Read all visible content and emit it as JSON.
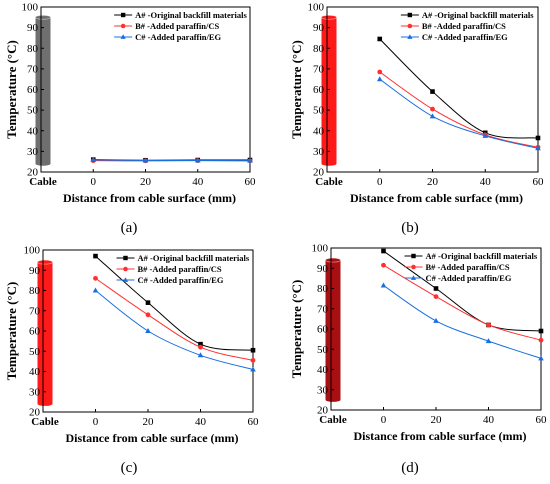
{
  "colors": {
    "series_A": "#000000",
    "series_B": "#ff3030",
    "series_C": "#1a6fe0",
    "cylinder_gray": "#6f6f6f",
    "cylinder_red": "#ff1a1a",
    "cylinder_darkred": "#a80f12"
  },
  "chart_data": [
    {
      "type": "line",
      "panel_label": "(a)",
      "cylinder_color": "cylinder_gray",
      "ylabel": "Temperature (°C)",
      "xlabel": "Distance from cable surface (mm)",
      "ylim": [
        20,
        100
      ],
      "yticks": [
        "20",
        "30",
        "40",
        "50",
        "60",
        "70",
        "80",
        "90",
        "100"
      ],
      "xlim": [
        -20,
        60
      ],
      "xticks": [
        {
          "value": -20,
          "label": "Cable"
        },
        {
          "value": 0,
          "label": "0"
        },
        {
          "value": 20,
          "label": "20"
        },
        {
          "value": 40,
          "label": "40"
        },
        {
          "value": 60,
          "label": "60"
        }
      ],
      "cylinder": {
        "label": "Cable",
        "top": 95,
        "bottom": 24
      },
      "legend_position": "top-right",
      "x": [
        0,
        20,
        40,
        60
      ],
      "series": [
        {
          "name": "A# -Original backfill materials",
          "color": "series_A",
          "marker": "square",
          "values": [
            26,
            25.7,
            25.8,
            25.8
          ]
        },
        {
          "name": "B# -Added paraffin/CS",
          "color": "series_B",
          "marker": "circle",
          "values": [
            25.5,
            25.4,
            25.5,
            25.4
          ]
        },
        {
          "name": "C# -Added paraffin/EG",
          "color": "series_C",
          "marker": "triangle",
          "values": [
            25.8,
            25.6,
            25.6,
            25.5
          ]
        }
      ]
    },
    {
      "type": "line",
      "panel_label": "(b)",
      "cylinder_color": "cylinder_red",
      "ylabel": "Temperature (°C)",
      "xlabel": "Distance from cable surface (mm)",
      "ylim": [
        20,
        100
      ],
      "yticks": [
        "20",
        "30",
        "40",
        "50",
        "60",
        "70",
        "80",
        "90",
        "100"
      ],
      "xlim": [
        -20,
        60
      ],
      "xticks": [
        {
          "value": -20,
          "label": "Cable"
        },
        {
          "value": 0,
          "label": "0"
        },
        {
          "value": 20,
          "label": "20"
        },
        {
          "value": 40,
          "label": "40"
        },
        {
          "value": 60,
          "label": "60"
        }
      ],
      "cylinder": {
        "label": "Cable",
        "top": 95,
        "bottom": 24
      },
      "legend_position": "top-right",
      "x": [
        0,
        20,
        40,
        60
      ],
      "series": [
        {
          "name": "A# -Original backfill materials",
          "color": "series_A",
          "marker": "square",
          "values": [
            84.5,
            59,
            39,
            36.5
          ]
        },
        {
          "name": "B# -Added paraffin/CS",
          "color": "series_B",
          "marker": "circle",
          "values": [
            68.5,
            50.5,
            38,
            32
          ]
        },
        {
          "name": "C# -Added paraffin/EG",
          "color": "series_C",
          "marker": "triangle",
          "values": [
            65,
            47,
            37.5,
            31.5
          ]
        }
      ]
    },
    {
      "type": "line",
      "panel_label": "(c)",
      "cylinder_color": "cylinder_red",
      "ylabel": "Temperature (°C)",
      "xlabel": "Distance from cable surface (mm)",
      "ylim": [
        20,
        100
      ],
      "yticks": [
        "20",
        "30",
        "40",
        "50",
        "60",
        "70",
        "80",
        "90",
        "100"
      ],
      "xlim": [
        -20,
        60
      ],
      "xticks": [
        {
          "value": -20,
          "label": "Cable"
        },
        {
          "value": 0,
          "label": "0"
        },
        {
          "value": 20,
          "label": "20"
        },
        {
          "value": 40,
          "label": "40"
        },
        {
          "value": 60,
          "label": "60"
        }
      ],
      "cylinder": {
        "label": "Cable",
        "top": 94,
        "bottom": 24
      },
      "legend_position": "top-right",
      "x": [
        0,
        20,
        40,
        60
      ],
      "series": [
        {
          "name": "A# -Original backfill materials",
          "color": "series_A",
          "marker": "square",
          "values": [
            97,
            74,
            53.5,
            50.5
          ]
        },
        {
          "name": "B# -Added paraffin/CS",
          "color": "series_B",
          "marker": "circle",
          "values": [
            86,
            68,
            52,
            45.5
          ]
        },
        {
          "name": "C# -Added paraffin/EG",
          "color": "series_C",
          "marker": "triangle",
          "values": [
            80,
            60,
            48,
            41
          ]
        }
      ]
    },
    {
      "type": "line",
      "panel_label": "(d)",
      "cylinder_color": "cylinder_darkred",
      "ylabel": "Temperature (°C)",
      "xlabel": "Distance from cable surface (mm)",
      "ylim": [
        20,
        100
      ],
      "yticks": [
        "20",
        "30",
        "40",
        "50",
        "60",
        "70",
        "80",
        "90",
        "100"
      ],
      "xlim": [
        -20,
        60
      ],
      "xticks": [
        {
          "value": -20,
          "label": "Cable"
        },
        {
          "value": 0,
          "label": "0"
        },
        {
          "value": 20,
          "label": "20"
        },
        {
          "value": 40,
          "label": "40"
        },
        {
          "value": 60,
          "label": "60"
        }
      ],
      "cylinder": {
        "label": "Cable",
        "top": 94,
        "bottom": 25
      },
      "legend_position": "top-right",
      "x": [
        0,
        20,
        40,
        60
      ],
      "series": [
        {
          "name": "A# -Original backfill materials",
          "color": "series_A",
          "marker": "square",
          "values": [
            98.5,
            80,
            62,
            59
          ]
        },
        {
          "name": "B# -Added paraffin/CS",
          "color": "series_B",
          "marker": "circle",
          "values": [
            91.5,
            76,
            62,
            54.5
          ]
        },
        {
          "name": "C# -Added paraffin/EG",
          "color": "series_C",
          "marker": "triangle",
          "values": [
            81.5,
            64,
            54,
            45.5
          ]
        }
      ]
    }
  ]
}
